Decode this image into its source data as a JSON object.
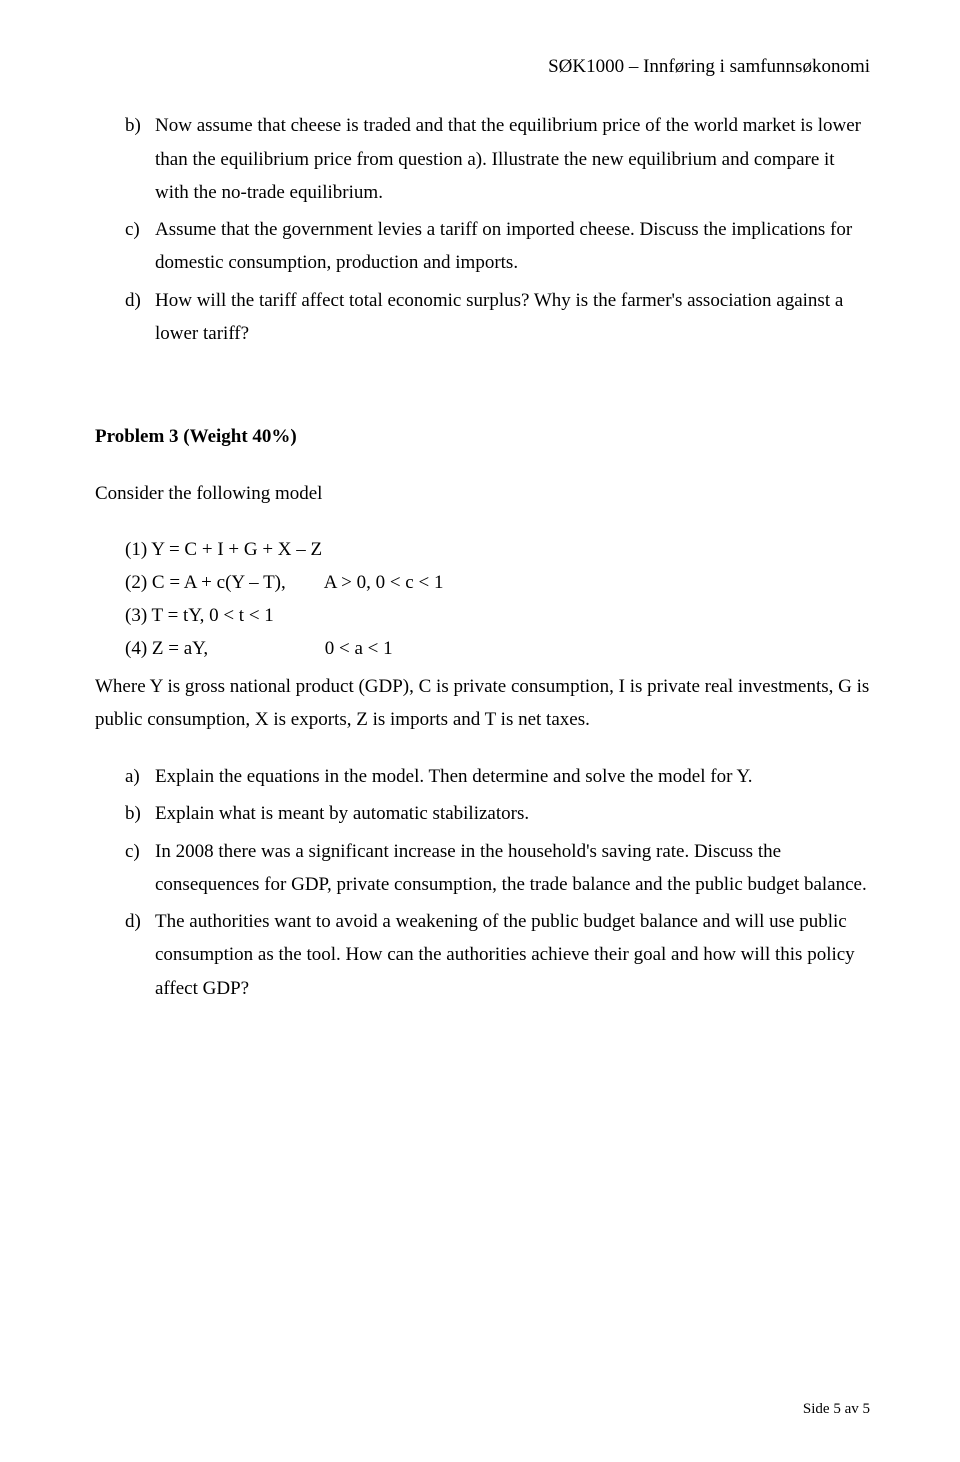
{
  "header": "SØK1000 – Innføring i samfunnsøkonomi",
  "list1": {
    "b": {
      "marker": "b)",
      "text": "Now assume that cheese is traded and that the equilibrium price of the world market is lower than the equilibrium price from question a). Illustrate the new equilibrium and compare it with the no-trade equilibrium."
    },
    "c": {
      "marker": "c)",
      "text": "Assume that the government levies a tariff on imported cheese. Discuss the implications for domestic consumption, production and imports."
    },
    "d": {
      "marker": "d)",
      "text": "How will the tariff affect total economic surplus? Why is the farmer's association against a lower tariff?"
    }
  },
  "problem_title": "Problem 3 (Weight 40%)",
  "intro": "Consider the following model",
  "equations": {
    "e1": {
      "lhs": "(1) Y = C + I + G + X – Z",
      "rhs": ""
    },
    "e2": {
      "lhs": "(2) C = A + c(Y – T),",
      "rhs": "A > 0, 0 < c < 1"
    },
    "e3": {
      "lhs": "(3) T = tY, 0 < t < 1",
      "rhs": ""
    },
    "e4": {
      "lhs": "(4) Z = aY,",
      "rhs": "0 < a < 1"
    }
  },
  "where": "Where Y is gross national product (GDP), C is private consumption, I is private real investments, G is public consumption, X is exports, Z is imports and T is net taxes.",
  "list2": {
    "a": {
      "marker": "a)",
      "text": "Explain the equations in the model. Then determine and solve the model for Y."
    },
    "b": {
      "marker": "b)",
      "text": "Explain what is meant by automatic stabilizators."
    },
    "c": {
      "marker": "c)",
      "text": "In 2008 there was a significant increase in the household's saving rate. Discuss the consequences for GDP, private consumption, the trade balance and the public budget balance."
    },
    "d": {
      "marker": "d)",
      "text": "The authorities want to avoid a weakening of the public budget balance and will use public consumption as the tool. How can the authorities achieve their goal and how will this policy affect GDP?"
    }
  },
  "footer": "Side 5 av 5"
}
